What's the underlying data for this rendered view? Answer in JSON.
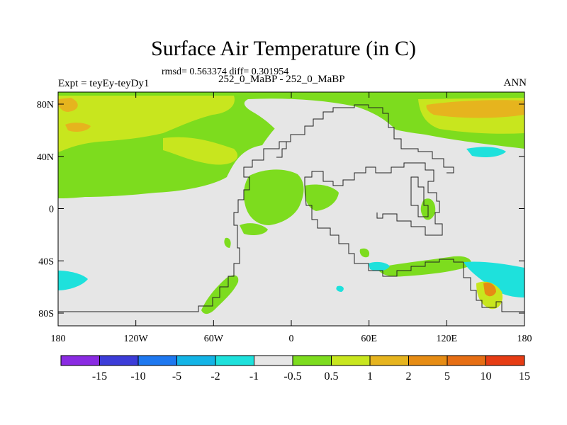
{
  "title": "Surface Air Temperature (in C)",
  "stats": "rmsd= 0.563374 diff= 0.301954",
  "left_label": "Expt = teyEy-teyDy1",
  "center_label": "252_0_MaBP - 252_0_MaBP",
  "right_label": "ANN",
  "x_axis_ticks": [
    "180",
    "120W",
    "60W",
    "0",
    "60E",
    "120E",
    "180"
  ],
  "y_axis_ticks": [
    "80N",
    "40N",
    "0",
    "40S",
    "80S"
  ],
  "colorbar": {
    "colors": [
      "#8a2be2",
      "#3c3cd8",
      "#1e78f0",
      "#13b4e6",
      "#1ee1dc",
      "#e6e6e6",
      "#7ddc1e",
      "#c8e61e",
      "#e6b41e",
      "#e68c14",
      "#e66e14",
      "#e63c14"
    ],
    "labels": [
      "-15",
      "-10",
      "-5",
      "-2",
      "-1",
      "-0.5",
      "0.5",
      "1",
      "2",
      "5",
      "10",
      "15"
    ]
  },
  "background_color": "#e6e6e6"
}
